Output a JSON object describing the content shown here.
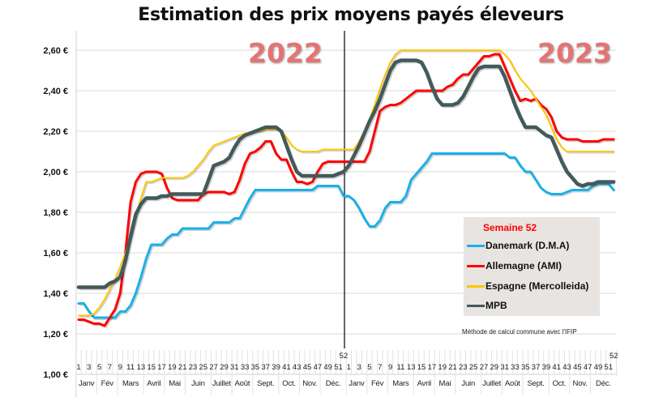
{
  "chart_data": {
    "type": "line",
    "title": "Estimation des prix moyens payés éleveurs",
    "year_labels": [
      "2022",
      "2023"
    ],
    "ylim": [
      1.0,
      2.6
    ],
    "y_ticks": [
      "1,00 €",
      "1,20 €",
      "1,40 €",
      "1,60 €",
      "1,80 €",
      "2,00 €",
      "2,20 €",
      "2,40 €",
      "2,60 €"
    ],
    "y_tick_values": [
      1.0,
      1.2,
      1.4,
      1.6,
      1.8,
      2.0,
      2.2,
      2.4,
      2.6
    ],
    "grid": true,
    "weeks_per_year": 52,
    "months": [
      {
        "label": "Janv",
        "weeks": [
          1,
          4
        ]
      },
      {
        "label": "Fév",
        "weeks": [
          5,
          8
        ]
      },
      {
        "label": "Mars",
        "weeks": [
          9,
          13
        ]
      },
      {
        "label": "Avril",
        "weeks": [
          14,
          17
        ]
      },
      {
        "label": "Mai",
        "weeks": [
          18,
          21
        ]
      },
      {
        "label": "Juin",
        "weeks": [
          22,
          26
        ]
      },
      {
        "label": "Juillet",
        "weeks": [
          27,
          30
        ]
      },
      {
        "label": "Août",
        "weeks": [
          31,
          34
        ]
      },
      {
        "label": "Sept.",
        "weeks": [
          35,
          39
        ]
      },
      {
        "label": "Oct.",
        "weeks": [
          40,
          43
        ]
      },
      {
        "label": "Nov.",
        "weeks": [
          44,
          47
        ]
      },
      {
        "label": "Déc.",
        "weeks": [
          48,
          52
        ]
      }
    ],
    "legend": {
      "title": "Semaine 52",
      "placement": "bottom-right"
    },
    "series": [
      {
        "name": "Danemark (D.M.A)",
        "color": "#1ab0e8",
        "width": 3,
        "values": [
          1.35,
          1.35,
          1.31,
          1.28,
          1.28,
          1.28,
          1.28,
          1.28,
          1.31,
          1.31,
          1.34,
          1.4,
          1.48,
          1.57,
          1.64,
          1.64,
          1.64,
          1.67,
          1.69,
          1.69,
          1.72,
          1.72,
          1.72,
          1.72,
          1.72,
          1.72,
          1.75,
          1.75,
          1.75,
          1.75,
          1.77,
          1.77,
          1.82,
          1.87,
          1.91,
          1.91,
          1.91,
          1.91,
          1.91,
          1.91,
          1.91,
          1.91,
          1.91,
          1.91,
          1.91,
          1.91,
          1.93,
          1.93,
          1.93,
          1.93,
          1.93,
          1.88,
          1.88,
          1.86,
          1.82,
          1.77,
          1.73,
          1.73,
          1.76,
          1.82,
          1.85,
          1.85,
          1.85,
          1.88,
          1.96,
          1.99,
          2.02,
          2.05,
          2.09,
          2.09,
          2.09,
          2.09,
          2.09,
          2.09,
          2.09,
          2.09,
          2.09,
          2.09,
          2.09,
          2.09,
          2.09,
          2.09,
          2.09,
          2.07,
          2.07,
          2.03,
          2.0,
          2.0,
          1.96,
          1.92,
          1.9,
          1.89,
          1.89,
          1.89,
          1.9,
          1.91,
          1.91,
          1.91,
          1.91,
          1.93,
          1.94,
          1.94,
          1.94,
          1.91
        ]
      },
      {
        "name": "Allemagne (AMI)",
        "color": "#ff0000",
        "width": 3,
        "values": [
          1.27,
          1.27,
          1.26,
          1.25,
          1.25,
          1.24,
          1.28,
          1.32,
          1.4,
          1.6,
          1.85,
          1.95,
          1.99,
          2.0,
          2.0,
          2.0,
          1.99,
          1.92,
          1.87,
          1.86,
          1.86,
          1.86,
          1.86,
          1.86,
          1.89,
          1.9,
          1.9,
          1.9,
          1.9,
          1.89,
          1.9,
          1.96,
          2.04,
          2.09,
          2.1,
          2.12,
          2.15,
          2.15,
          2.09,
          2.06,
          2.06,
          2.0,
          1.95,
          1.95,
          1.94,
          1.95,
          2.0,
          2.04,
          2.05,
          2.05,
          2.05,
          2.05,
          2.05,
          2.05,
          2.05,
          2.05,
          2.1,
          2.2,
          2.3,
          2.32,
          2.33,
          2.33,
          2.34,
          2.36,
          2.38,
          2.4,
          2.4,
          2.4,
          2.4,
          2.4,
          2.4,
          2.42,
          2.43,
          2.46,
          2.48,
          2.48,
          2.51,
          2.54,
          2.57,
          2.57,
          2.58,
          2.58,
          2.52,
          2.46,
          2.4,
          2.35,
          2.36,
          2.35,
          2.36,
          2.33,
          2.31,
          2.27,
          2.2,
          2.17,
          2.16,
          2.16,
          2.16,
          2.15,
          2.15,
          2.15,
          2.15,
          2.16,
          2.16,
          2.16
        ]
      },
      {
        "name": "Espagne (Mercolleida)",
        "color": "#ffc600",
        "width": 2,
        "values": [
          1.29,
          1.29,
          1.29,
          1.3,
          1.33,
          1.37,
          1.42,
          1.47,
          1.53,
          1.6,
          1.68,
          1.78,
          1.87,
          1.95,
          1.95,
          1.96,
          1.97,
          1.97,
          1.97,
          1.97,
          1.97,
          1.98,
          2.0,
          2.03,
          2.06,
          2.1,
          2.13,
          2.14,
          2.15,
          2.16,
          2.17,
          2.18,
          2.19,
          2.19,
          2.2,
          2.2,
          2.21,
          2.21,
          2.21,
          2.2,
          2.17,
          2.13,
          2.11,
          2.1,
          2.1,
          2.1,
          2.1,
          2.11,
          2.11,
          2.11,
          2.11,
          2.11,
          2.11,
          2.11,
          2.15,
          2.2,
          2.26,
          2.33,
          2.41,
          2.48,
          2.54,
          2.58,
          2.6,
          2.6,
          2.6,
          2.6,
          2.6,
          2.6,
          2.6,
          2.6,
          2.6,
          2.6,
          2.6,
          2.6,
          2.6,
          2.6,
          2.6,
          2.6,
          2.6,
          2.6,
          2.6,
          2.6,
          2.58,
          2.55,
          2.5,
          2.46,
          2.43,
          2.4,
          2.36,
          2.32,
          2.28,
          2.22,
          2.16,
          2.12,
          2.1,
          2.1,
          2.1,
          2.1,
          2.1,
          2.1,
          2.1,
          2.1,
          2.1,
          2.1
        ]
      },
      {
        "name": "MPB",
        "color": "#445a5a",
        "width": 4.5,
        "values": [
          1.43,
          1.43,
          1.43,
          1.43,
          1.43,
          1.43,
          1.45,
          1.46,
          1.48,
          1.56,
          1.68,
          1.79,
          1.84,
          1.87,
          1.87,
          1.87,
          1.88,
          1.88,
          1.89,
          1.89,
          1.89,
          1.89,
          1.89,
          1.89,
          1.89,
          1.96,
          2.03,
          2.04,
          2.05,
          2.07,
          2.12,
          2.16,
          2.18,
          2.19,
          2.2,
          2.21,
          2.22,
          2.22,
          2.22,
          2.2,
          2.13,
          2.06,
          2.0,
          1.98,
          1.98,
          1.98,
          1.98,
          1.98,
          1.98,
          1.98,
          1.99,
          2.0,
          2.03,
          2.08,
          2.13,
          2.19,
          2.25,
          2.3,
          2.36,
          2.43,
          2.5,
          2.54,
          2.55,
          2.55,
          2.55,
          2.55,
          2.54,
          2.49,
          2.42,
          2.36,
          2.33,
          2.33,
          2.33,
          2.34,
          2.37,
          2.42,
          2.47,
          2.51,
          2.52,
          2.52,
          2.52,
          2.52,
          2.47,
          2.4,
          2.33,
          2.27,
          2.22,
          2.22,
          2.22,
          2.2,
          2.18,
          2.17,
          2.11,
          2.05,
          2.0,
          1.97,
          1.94,
          1.93,
          1.94,
          1.94,
          1.95,
          1.95,
          1.95,
          1.95
        ]
      }
    ],
    "annotation": "Méthode de calcul commune avec l'IFIP"
  }
}
